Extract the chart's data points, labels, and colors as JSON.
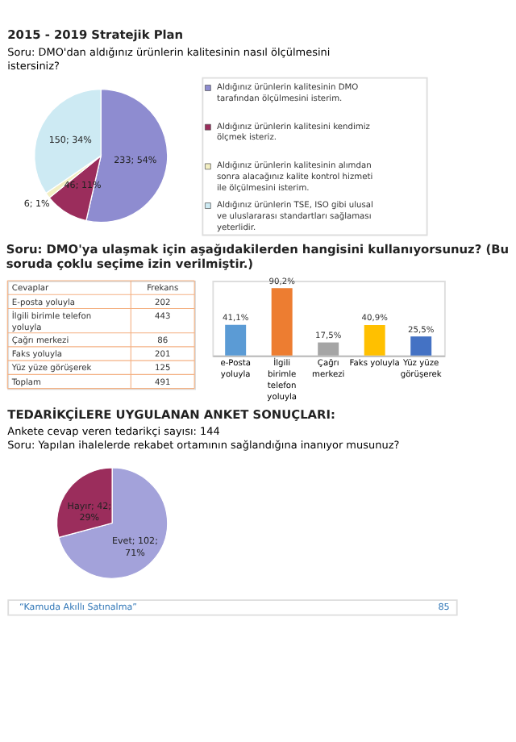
{
  "chart_data": [
    {
      "type": "pie",
      "title": "2015 - 2019 Stratejik Plan",
      "subtitle": "Soru: DMO'dan aldığınız ürünlerin kalitesinin nasıl ölçülmesini istersiniz?",
      "categories": [
        "Aldığınız ürünlerin kalitesinin DMO tarafından ölçülmesini isterim.",
        "Aldığınız ürünlerin kalitesini kendimiz ölçmek isteriz.",
        "Aldığınız ürünlerin kalitesinin alımdan sonra alacağınız kalite kontrol hizmeti ile ölçülmesini isterim.",
        "Aldığınız ürünlerin TSE, ISO gibi ulusal ve uluslararası standartları sağlaması yeterlidir."
      ],
      "values": [
        233,
        46,
        6,
        150
      ],
      "value_labels": [
        "233; 54%",
        "46; 11%",
        "6; 1%",
        "150; 34%"
      ],
      "colors": [
        "#8e8cd0",
        "#9b2d5c",
        "#f3efc2",
        "#cdeaf3"
      ],
      "legend": "right"
    },
    {
      "type": "other",
      "title": "Soru: DMO'ya ulaşmak için aşağıdakilerden hangisini kullanıyorsunuz? (Bu soruda çoklu seçime izin verilmiştir.)",
      "xlabel": "Cevaplar",
      "ylabel": "Frekans",
      "categories": [
        "E-posta yoluyla",
        "İlgili birimle telefon yoluyla",
        "Çağrı merkezi",
        "Faks yoluyla",
        "Yüz yüze görüşerek",
        "Toplam"
      ],
      "values": [
        202,
        443,
        86,
        201,
        125,
        491
      ],
      "data_labels": true
    },
    {
      "type": "bar",
      "categories": [
        "e-Posta yoluyla",
        "İlgili birimle telefon yoluyla",
        "Çağrı merkezi",
        "Faks yoluyla",
        "Yüz yüze görüşerek"
      ],
      "values": [
        41.1,
        90.2,
        17.5,
        40.9,
        25.5
      ],
      "value_labels": [
        "41,1%",
        "90,2%",
        "17,5%",
        "40,9%",
        "25,5%"
      ],
      "colors": [
        "#5b9bd5",
        "#ed7d31",
        "#a5a5a5",
        "#ffc000",
        "#4472c4"
      ],
      "tick_labels": "x"
    },
    {
      "type": "pie",
      "title": "TEDARİKÇİLERE UYGULANAN ANKET SONUÇLARI:",
      "subtitle": "Ankete cevap veren tedarikçi sayısı: 144",
      "annotations": [
        "Soru: Yapılan ihalelerde rekabet ortamının sağlandığına inanıyor musunuz?",
        "“Kamuda Akıllı Satınalma”",
        "85"
      ],
      "categories": [
        "Evet",
        "Hayır"
      ],
      "values": [
        102,
        42
      ],
      "value_labels": [
        "102; 71%",
        "42; 29%"
      ],
      "colors": [
        "#a3a2da",
        "#9b2d5c"
      ]
    }
  ]
}
